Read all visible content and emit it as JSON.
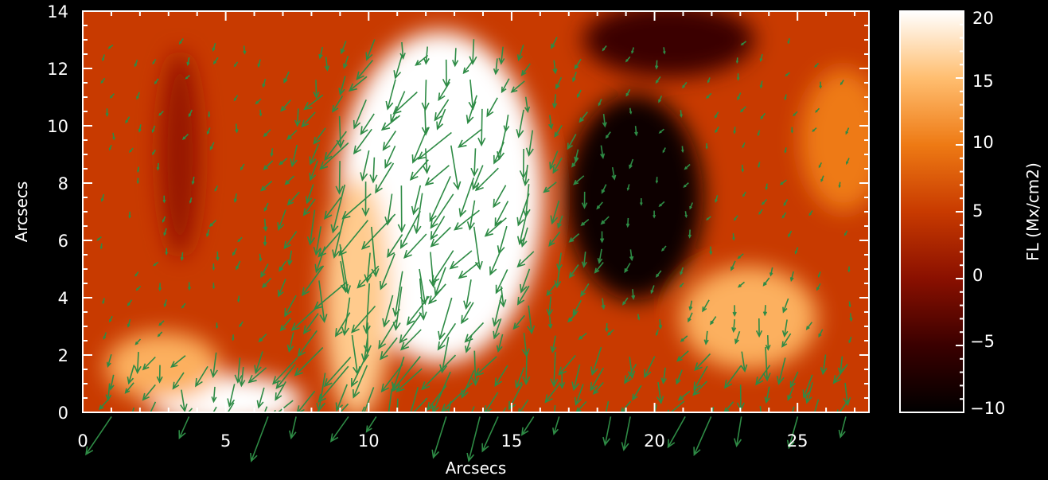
{
  "chart_data": {
    "type": "heatmap",
    "title": "",
    "xlabel": "Arcsecs",
    "ylabel": "Arcsecs",
    "xlim": [
      0,
      27.5
    ],
    "ylim": [
      0,
      14
    ],
    "x_ticks": [
      "0",
      "5",
      "10",
      "15",
      "20",
      "25"
    ],
    "y_ticks": [
      "0",
      "2",
      "4",
      "6",
      "8",
      "10",
      "12",
      "14"
    ],
    "colorbar": {
      "label": "FL (Mx/cm2)",
      "range": [
        -10,
        20
      ],
      "ticks": [
        "20",
        "15",
        "10",
        "5",
        "0",
        "−10"
      ],
      "neg_ticks": [
        "−5"
      ]
    },
    "colormap": [
      "#000000",
      "#3a0000",
      "#8a1000",
      "#c83a00",
      "#ee7a14",
      "#ffbe70",
      "#ffffff"
    ],
    "vector_color": "#2e8b45",
    "field_regions": [
      {
        "desc": "strong positive plage",
        "x": 12.5,
        "y": 7.5,
        "rx": 3.6,
        "ry": 5.8,
        "value": 22
      },
      {
        "desc": "positive tongue",
        "x": 9.6,
        "y": 4.0,
        "rx": 1.2,
        "ry": 4.2,
        "value": 16
      },
      {
        "desc": "bright patch bottom",
        "x": 5.0,
        "y": 0.4,
        "rx": 2.7,
        "ry": 0.9,
        "value": 20
      },
      {
        "desc": "orange patch bottom left",
        "x": 2.8,
        "y": 1.6,
        "rx": 2.0,
        "ry": 1.2,
        "value": 14
      },
      {
        "desc": "orange patch right",
        "x": 23.3,
        "y": 3.3,
        "rx": 2.4,
        "ry": 1.8,
        "value": 14
      },
      {
        "desc": "orange patch far right",
        "x": 26.6,
        "y": 9.5,
        "rx": 1.5,
        "ry": 2.5,
        "value": 10
      },
      {
        "desc": "dark negative region",
        "x": 19.3,
        "y": 7.5,
        "rx": 2.4,
        "ry": 3.6,
        "value": -9
      },
      {
        "desc": "dark negative top",
        "x": 20.5,
        "y": 13.0,
        "rx": 3.0,
        "ry": 1.3,
        "value": -5
      },
      {
        "desc": "dark column left",
        "x": 3.4,
        "y": 9.0,
        "rx": 0.7,
        "ry": 3.6,
        "value": 1
      }
    ]
  }
}
